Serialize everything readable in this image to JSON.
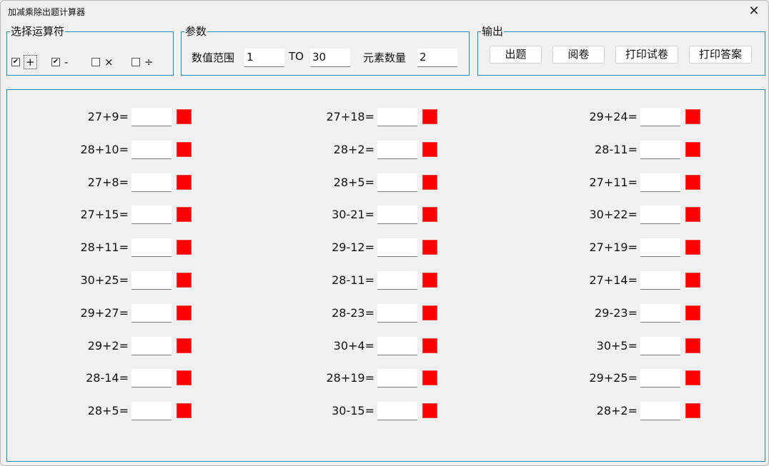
{
  "window": {
    "title": "加减乘除出题计算器",
    "close_icon": "close-icon"
  },
  "operators": {
    "label": "选择运算符",
    "items": [
      {
        "symbol": "+",
        "checked": true
      },
      {
        "symbol": "-",
        "checked": true
      },
      {
        "symbol": "×",
        "checked": false
      },
      {
        "symbol": "÷",
        "checked": false
      }
    ]
  },
  "params": {
    "label": "参数",
    "range_label": "数值范围",
    "range_from": "1",
    "to_label": "TO",
    "range_to": "30",
    "count_label": "元素数量",
    "count": "2"
  },
  "output": {
    "label": "输出",
    "buttons": [
      "出题",
      "阅卷",
      "打印试卷",
      "打印答案"
    ]
  },
  "colors": {
    "accent": "#1d8bb7",
    "indicator": "#ff0000"
  },
  "problems": [
    [
      "27+9=",
      "28+10=",
      "27+8=",
      "27+15=",
      "28+11=",
      "30+25=",
      "29+27=",
      "29+2=",
      "28-14=",
      "28+5="
    ],
    [
      "27+18=",
      "28+2=",
      "28+5=",
      "30-21=",
      "29-12=",
      "28-11=",
      "28-23=",
      "30+4=",
      "28+19=",
      "30-15="
    ],
    [
      "29+24=",
      "28-11=",
      "27+11=",
      "30+22=",
      "27+19=",
      "27+14=",
      "29-23=",
      "30+5=",
      "29+25=",
      "28+2="
    ]
  ]
}
